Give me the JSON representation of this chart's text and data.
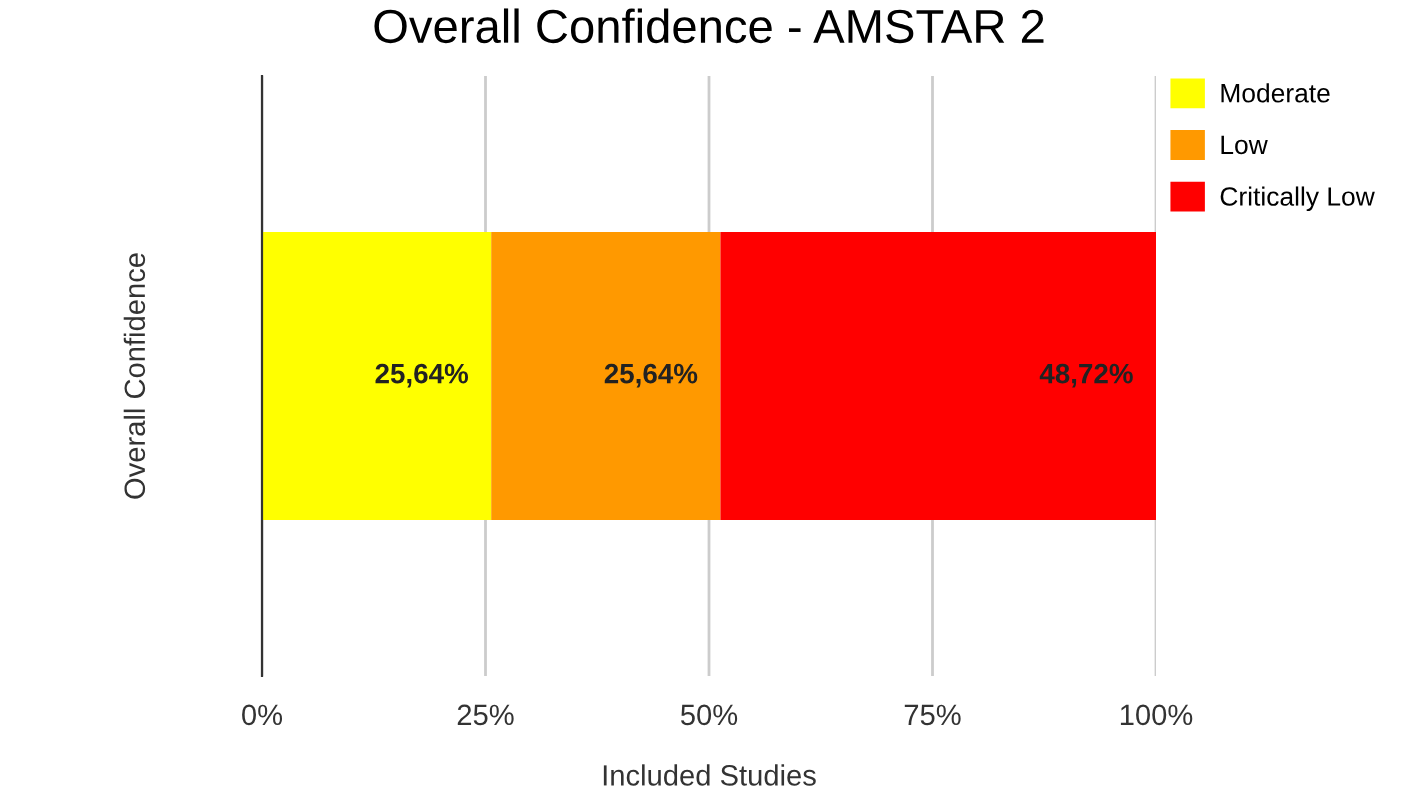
{
  "chart_data": {
    "type": "bar",
    "orientation": "horizontal",
    "stacked": true,
    "title": "Overall Confidence - AMSTAR 2",
    "xlabel": "Included Studies",
    "ylabel": "Overall Confidence",
    "categories": [
      null
    ],
    "series": [
      {
        "name": "Moderate",
        "color": "#ffff00",
        "values": [
          25.64
        ],
        "value_labels": [
          "25,64%"
        ]
      },
      {
        "name": "Low",
        "color": "#ff9900",
        "values": [
          25.64
        ],
        "value_labels": [
          "25,64%"
        ]
      },
      {
        "name": "Critically Low",
        "color": "#ff0000",
        "values": [
          48.72
        ],
        "value_labels": [
          "48,72%"
        ]
      }
    ],
    "xlim": [
      0,
      100
    ],
    "xticks": [
      {
        "value": 0,
        "label": "0%"
      },
      {
        "value": 25,
        "label": "25%"
      },
      {
        "value": 50,
        "label": "50%"
      },
      {
        "value": 75,
        "label": "75%"
      },
      {
        "value": 100,
        "label": "100%"
      }
    ],
    "grid": "x",
    "legend": "top right"
  }
}
